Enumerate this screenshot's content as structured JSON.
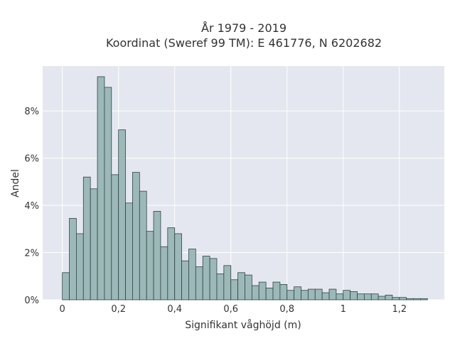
{
  "chart_data": {
    "type": "bar",
    "title": "År 1979 - 2019",
    "subtitle": "Koordinat (Sweref 99 TM): E 461776, N 6202682",
    "xlabel": "Signifikant våghöjd (m)",
    "ylabel": "Andel",
    "xlim": [
      -0.07,
      1.36
    ],
    "ylim": [
      0,
      9.9
    ],
    "grid": true,
    "bin_width": 0.025,
    "bin_start": 0,
    "x_ticks": [
      {
        "value": 0,
        "label": "0"
      },
      {
        "value": 0.2,
        "label": "0,2"
      },
      {
        "value": 0.4,
        "label": "0,4"
      },
      {
        "value": 0.6,
        "label": "0,6"
      },
      {
        "value": 0.8,
        "label": "0,8"
      },
      {
        "value": 1.0,
        "label": "1"
      },
      {
        "value": 1.2,
        "label": "1,2"
      }
    ],
    "y_ticks": [
      {
        "value": 0,
        "label": "0%"
      },
      {
        "value": 2,
        "label": "2%"
      },
      {
        "value": 4,
        "label": "4%"
      },
      {
        "value": 6,
        "label": "6%"
      },
      {
        "value": 8,
        "label": "8%"
      }
    ],
    "values": [
      1.15,
      3.45,
      2.8,
      5.2,
      4.7,
      9.45,
      9.0,
      5.3,
      7.2,
      4.1,
      5.4,
      4.6,
      2.9,
      3.75,
      2.25,
      3.05,
      2.8,
      1.65,
      2.15,
      1.4,
      1.85,
      1.75,
      1.1,
      1.45,
      0.85,
      1.15,
      1.05,
      0.6,
      0.75,
      0.5,
      0.75,
      0.65,
      0.4,
      0.55,
      0.4,
      0.45,
      0.45,
      0.3,
      0.45,
      0.25,
      0.4,
      0.35,
      0.25,
      0.25,
      0.25,
      0.15,
      0.2,
      0.1,
      0.1,
      0.05,
      0.05,
      0.05
    ]
  },
  "colors": {
    "plot_background": "#e5e7f0",
    "bar_fill": "#9db8b8",
    "bar_stroke": "#2f4444",
    "grid": "#ffffff",
    "text": "#333333"
  }
}
